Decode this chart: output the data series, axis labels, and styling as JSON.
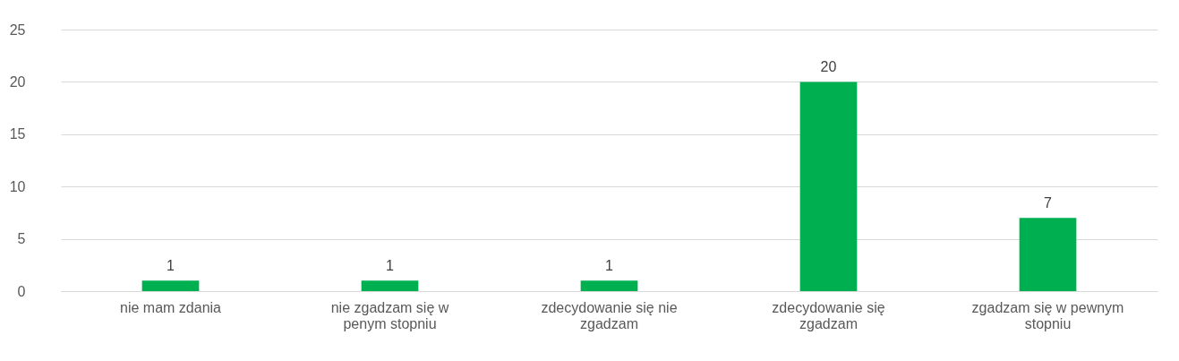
{
  "chart_data": {
    "type": "bar",
    "categories": [
      "nie mam zdania",
      "nie zgadzam się w penym stopniu",
      "zdecydowanie się nie zgadzam",
      "zdecydowanie się zgadzam",
      "zgadzam się w pewnym stopniu"
    ],
    "values": [
      1,
      1,
      1,
      20,
      7
    ],
    "color": "#00b050",
    "ylim": [
      0,
      25
    ],
    "yticks": [
      0,
      5,
      10,
      15,
      20,
      25
    ],
    "grid": "y",
    "data_labels": true
  }
}
